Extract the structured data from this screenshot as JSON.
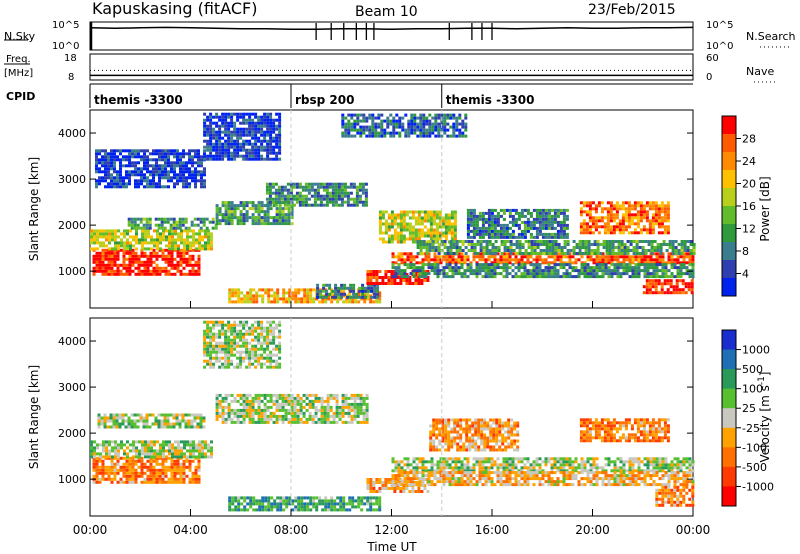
{
  "header": {
    "title": "Kapuskasing (fitACF)",
    "beam": "Beam 10",
    "date": "23/Feb/2015"
  },
  "chart_data": [
    {
      "type": "line",
      "panel": "nsky",
      "left_label": "N.Sky",
      "left_ticks": [
        "10^5",
        "10^0"
      ],
      "right_label": "N.Search",
      "right_ticks": [
        "10^5",
        "10^0"
      ],
      "x": [
        0,
        1,
        2,
        3,
        4,
        5,
        6,
        7,
        8,
        9,
        10,
        11,
        12,
        13,
        14,
        15,
        16,
        17,
        18,
        19,
        20,
        21,
        22,
        23,
        24
      ],
      "values": [
        4.2,
        4.1,
        4.2,
        4.3,
        4.2,
        4.1,
        4.0,
        4.0,
        3.9,
        3.9,
        4.0,
        4.0,
        3.9,
        4.0,
        4.0,
        4.1,
        4.1,
        4.0,
        4.1,
        4.2,
        4.1,
        4.1,
        4.2,
        4.2,
        4.3
      ],
      "ylim": [
        0,
        5
      ]
    },
    {
      "type": "line",
      "panel": "freq",
      "left_label": "Freq.",
      "left_unit": "[MHz]",
      "left_ticks": [
        "18",
        "8"
      ],
      "right_label": "Nave",
      "right_ticks": [
        "60",
        "0"
      ],
      "series": [
        {
          "values": [
            12,
            12,
            12,
            12,
            12,
            12,
            12,
            12,
            12,
            12,
            12,
            12,
            12,
            12,
            12,
            12,
            12,
            12,
            12,
            12,
            12,
            12,
            12,
            12,
            12
          ]
        },
        {
          "values": [
            8.6,
            8.6,
            8.6,
            8.6,
            8.6,
            8.6,
            8.6,
            8.6,
            8.6,
            8.6,
            8.6,
            8.6,
            8.6,
            8.6,
            8.6,
            8.6,
            8.6,
            8.6,
            8.6,
            8.6,
            8.6,
            8.6,
            8.6,
            8.6,
            8.6
          ]
        }
      ],
      "ylim": [
        8,
        18
      ]
    },
    {
      "type": "table",
      "panel": "cpid",
      "label": "CPID",
      "segments": [
        {
          "start": 0,
          "end": 8,
          "name": "themis -3300"
        },
        {
          "start": 8,
          "end": 14,
          "name": "rbsp 200"
        },
        {
          "start": 14,
          "end": 24,
          "name": "themis -3300"
        }
      ]
    },
    {
      "type": "heatmap",
      "panel": "power",
      "ylabel": "Slant Range [km]",
      "yticks": [
        1000,
        2000,
        3000,
        4000
      ],
      "ylim": [
        200,
        4500
      ],
      "xlim": [
        0,
        24
      ],
      "colorbar": {
        "label": "Power [dB]",
        "ticks": [
          "4",
          "8",
          "12",
          "16",
          "20",
          "24",
          "28"
        ],
        "colors": [
          "#0022ee",
          "#2f3fb0",
          "#3a7d8c",
          "#2e9a3c",
          "#62bb2a",
          "#b8cf1c",
          "#ffc000",
          "#ff8a00",
          "#ff5a00",
          "#ff0000"
        ]
      },
      "blobs": [
        {
          "t0": 0.1,
          "t1": 4.3,
          "r0": 900,
          "r1": 1450,
          "v": 0.95
        },
        {
          "t0": 0.0,
          "t1": 4.8,
          "r0": 1450,
          "r1": 1900,
          "v": 0.55
        },
        {
          "t0": 1.5,
          "t1": 5.0,
          "r0": 1900,
          "r1": 2150,
          "v": 0.35
        },
        {
          "t0": 0.2,
          "t1": 4.5,
          "r0": 2800,
          "r1": 3600,
          "v": 0.1
        },
        {
          "t0": 4.5,
          "t1": 7.5,
          "r0": 3400,
          "r1": 4400,
          "v": 0.1
        },
        {
          "t0": 5.0,
          "t1": 8.0,
          "r0": 2000,
          "r1": 2500,
          "v": 0.35
        },
        {
          "t0": 7.0,
          "t1": 11.0,
          "r0": 2400,
          "r1": 2900,
          "v": 0.3
        },
        {
          "t0": 5.5,
          "t1": 11.5,
          "r0": 300,
          "r1": 600,
          "v": 0.7
        },
        {
          "t0": 9.0,
          "t1": 11.5,
          "r0": 400,
          "r1": 700,
          "v": 0.25
        },
        {
          "t0": 11.0,
          "t1": 13.5,
          "r0": 700,
          "r1": 1000,
          "v": 0.95
        },
        {
          "t0": 11.5,
          "t1": 14.5,
          "r0": 1600,
          "r1": 2300,
          "v": 0.55
        },
        {
          "t0": 12.0,
          "t1": 24.0,
          "r0": 1150,
          "r1": 1350,
          "v": 0.85
        },
        {
          "t0": 13.0,
          "t1": 24.0,
          "r0": 1350,
          "r1": 1650,
          "v": 0.35
        },
        {
          "t0": 12.0,
          "t1": 24.0,
          "r0": 850,
          "r1": 1150,
          "v": 0.3
        },
        {
          "t0": 15.0,
          "t1": 19.0,
          "r0": 1700,
          "r1": 2300,
          "v": 0.25
        },
        {
          "t0": 19.5,
          "t1": 23.0,
          "r0": 1800,
          "r1": 2500,
          "v": 0.8
        },
        {
          "t0": 22.0,
          "t1": 24.0,
          "r0": 500,
          "r1": 800,
          "v": 0.95
        },
        {
          "t0": 10.0,
          "t1": 15.0,
          "r0": 3900,
          "r1": 4400,
          "v": 0.2
        }
      ]
    },
    {
      "type": "heatmap",
      "panel": "velocity",
      "ylabel": "Slant Range [km]",
      "yticks": [
        1000,
        2000,
        3000,
        4000
      ],
      "ylim": [
        200,
        4500
      ],
      "xlim": [
        0,
        24
      ],
      "xlabel": "Time UT",
      "xticks": [
        "00:00",
        "04:00",
        "08:00",
        "12:00",
        "16:00",
        "20:00",
        "00:00"
      ],
      "colorbar": {
        "label": "Velocity [m s^-1]",
        "ticks": [
          "1000",
          "500",
          "100",
          "25",
          "-25",
          "-100",
          "-500",
          "-1000"
        ],
        "colors": [
          "#1a2ed0",
          "#1e6fb4",
          "#2a9a5a",
          "#58c030",
          "#c8c8c0",
          "#ffa200",
          "#ff7000",
          "#ff3a00",
          "#ff0000"
        ]
      },
      "blobs": [
        {
          "t0": 0.1,
          "t1": 4.3,
          "r0": 900,
          "r1": 1450,
          "v": 0.7
        },
        {
          "t0": 0.0,
          "t1": 4.8,
          "r0": 1450,
          "r1": 1800,
          "v": 0.45
        },
        {
          "t0": 0.3,
          "t1": 4.5,
          "r0": 2100,
          "r1": 2400,
          "v": 0.45
        },
        {
          "t0": 4.5,
          "t1": 7.5,
          "r0": 3400,
          "r1": 4400,
          "v": 0.45
        },
        {
          "t0": 5.0,
          "t1": 11.0,
          "r0": 2200,
          "r1": 2800,
          "v": 0.45
        },
        {
          "t0": 5.5,
          "t1": 11.5,
          "r0": 300,
          "r1": 600,
          "v": 0.3
        },
        {
          "t0": 11.0,
          "t1": 13.5,
          "r0": 700,
          "r1": 1000,
          "v": 0.62
        },
        {
          "t0": 13.5,
          "t1": 17.0,
          "r0": 1600,
          "r1": 2300,
          "v": 0.65
        },
        {
          "t0": 12.0,
          "t1": 24.0,
          "r0": 1150,
          "r1": 1450,
          "v": 0.45
        },
        {
          "t0": 12.0,
          "t1": 24.0,
          "r0": 850,
          "r1": 1150,
          "v": 0.6
        },
        {
          "t0": 19.5,
          "t1": 23.0,
          "r0": 1800,
          "r1": 2300,
          "v": 0.7
        },
        {
          "t0": 22.5,
          "t1": 24.0,
          "r0": 400,
          "r1": 800,
          "v": 0.7
        }
      ]
    }
  ]
}
